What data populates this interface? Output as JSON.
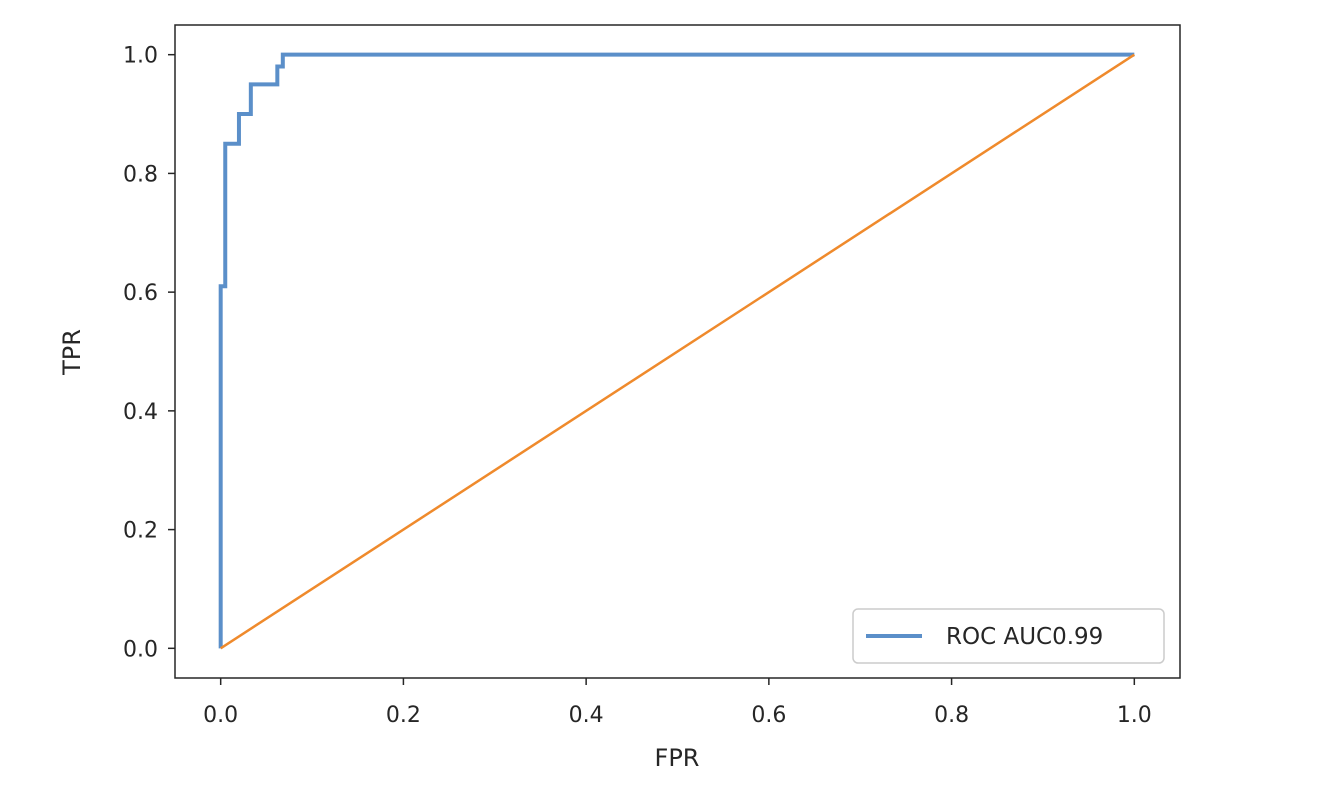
{
  "chart_data": {
    "type": "line",
    "title": "",
    "xlabel": "FPR",
    "ylabel": "TPR",
    "xlim": [
      -0.05,
      1.05
    ],
    "ylim": [
      -0.05,
      1.05
    ],
    "xticks": [
      "0.0",
      "0.2",
      "0.4",
      "0.6",
      "0.8",
      "1.0"
    ],
    "yticks": [
      "0.0",
      "0.2",
      "0.4",
      "0.6",
      "0.8",
      "1.0"
    ],
    "grid": false,
    "legend_position": "bottom-right",
    "series": [
      {
        "name": "ROC AUC0.99",
        "color": "#5b8fc9",
        "x": [
          0.0,
          0.0,
          0.0,
          0.005,
          0.005,
          0.02,
          0.02,
          0.033,
          0.033,
          0.062,
          0.062,
          0.068,
          0.068,
          1.0
        ],
        "y": [
          0.0,
          0.61,
          0.61,
          0.61,
          0.85,
          0.85,
          0.9,
          0.9,
          0.95,
          0.95,
          0.98,
          0.98,
          1.0,
          1.0
        ]
      },
      {
        "color": "#ef8a2c",
        "x": [
          0.0,
          1.0
        ],
        "y": [
          0.0,
          1.0
        ]
      }
    ]
  }
}
